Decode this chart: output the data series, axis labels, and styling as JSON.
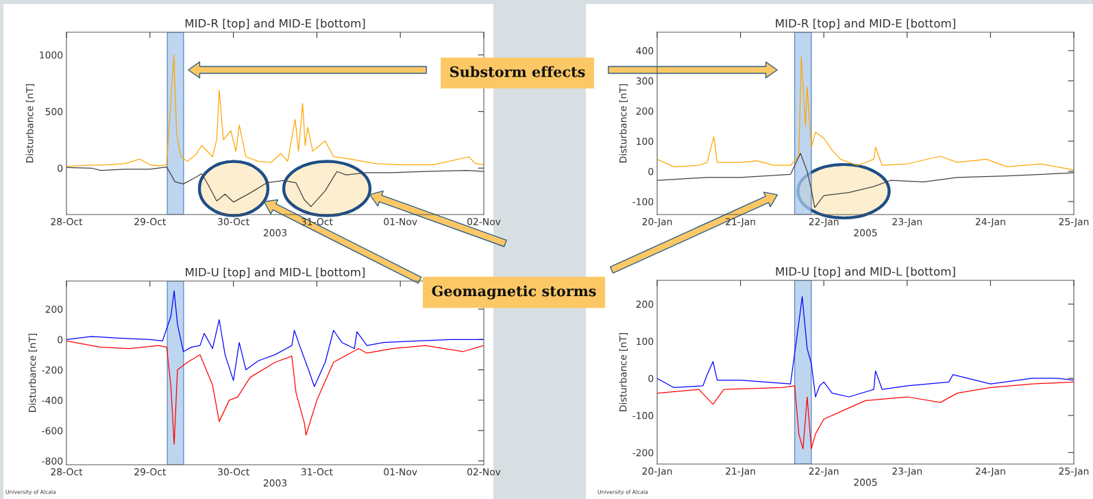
{
  "chart_data": [
    {
      "type": "line",
      "title": "MID-R [top] and MID-E [bottom]",
      "xlabel": "2003",
      "ylabel": "Disturbance [nT]",
      "xlim": [
        "2003-10-28",
        "2003-11-02"
      ],
      "xticks": [
        {
          "value": "2003-10-28",
          "label": "28-Oct"
        },
        {
          "value": "2003-10-29",
          "label": "29-Oct"
        },
        {
          "value": "2003-10-30",
          "label": "30-Oct"
        },
        {
          "value": "2003-10-31",
          "label": "31-Oct"
        },
        {
          "value": "2003-11-01",
          "label": "01-Nov"
        },
        {
          "value": "2003-11-02",
          "label": "02-Nov"
        }
      ],
      "ylim": [
        -410,
        1200
      ],
      "yticks": [
        0,
        500,
        1000
      ],
      "series": [
        {
          "color": "#ffa500",
          "x": [
            "2003-10-28T00:00",
            "2003-10-28T06:00",
            "2003-10-28T12:00",
            "2003-10-28T17:00",
            "2003-10-28T21:00",
            "2003-10-29T00:00",
            "2003-10-29T02:24",
            "2003-10-29T04:48",
            "2003-10-29T06:53",
            "2003-10-29T07:41",
            "2003-10-29T08:53",
            "2003-10-29T10:48",
            "2003-10-29T13:12",
            "2003-10-29T14:53",
            "2003-10-29T18:00",
            "2003-10-29T19:12",
            "2003-10-29T19:55",
            "2003-10-29T21:07",
            "2003-10-29T23:17",
            "2003-10-30T00:43",
            "2003-10-30T01:41",
            "2003-10-30T03:36",
            "2003-10-30T07:12",
            "2003-10-30T10:48",
            "2003-10-30T13:41",
            "2003-10-30T15:36",
            "2003-10-30T17:46",
            "2003-10-30T18:43",
            "2003-10-30T19:55",
            "2003-10-30T20:38",
            "2003-10-30T21:22",
            "2003-10-30T22:48",
            "2003-10-31T02:24",
            "2003-10-31T04:48",
            "2003-10-31T09:36",
            "2003-10-31T16:48",
            "2003-11-01T00:00",
            "2003-11-01T09:36",
            "2003-11-01T19:41",
            "2003-11-01T21:36",
            "2003-11-02T00:00"
          ],
          "values": [
            15,
            25,
            30,
            40,
            80,
            30,
            20,
            30,
            1000,
            300,
            100,
            60,
            120,
            200,
            100,
            250,
            690,
            250,
            330,
            150,
            380,
            100,
            60,
            50,
            130,
            60,
            430,
            150,
            570,
            200,
            360,
            150,
            240,
            100,
            80,
            40,
            30,
            30,
            100,
            40,
            30
          ]
        },
        {
          "color": "#404040",
          "x": [
            "2003-10-28T00:00",
            "2003-10-28T07:12",
            "2003-10-28T09:50",
            "2003-10-28T16:48",
            "2003-10-29T00:00",
            "2003-10-29T04:48",
            "2003-10-29T07:12",
            "2003-10-29T09:36",
            "2003-10-29T13:12",
            "2003-10-29T14:53",
            "2003-10-29T16:48",
            "2003-10-29T19:12",
            "2003-10-29T21:36",
            "2003-10-30T00:00",
            "2003-10-30T04:48",
            "2003-10-30T09:36",
            "2003-10-30T14:24",
            "2003-10-30T18:00",
            "2003-10-30T20:24",
            "2003-10-30T22:19",
            "2003-10-31T02:24",
            "2003-10-31T05:46",
            "2003-10-31T08:24",
            "2003-10-31T14:24",
            "2003-10-31T21:36",
            "2003-11-01T07:12",
            "2003-11-01T19:12",
            "2003-11-02T00:00"
          ],
          "values": [
            5,
            0,
            -20,
            -10,
            -10,
            10,
            -120,
            -140,
            -80,
            -50,
            -150,
            -290,
            -230,
            -300,
            -220,
            -130,
            -110,
            -130,
            -280,
            -340,
            -200,
            -30,
            -60,
            -40,
            -40,
            -30,
            -20,
            -30
          ]
        }
      ],
      "bands": [
        {
          "axis": "x",
          "from": "2003-10-29T05:00",
          "to": "2003-10-29T09:40",
          "color": "#a8c8ea"
        }
      ],
      "annotations": [
        "Substorm effects"
      ]
    },
    {
      "type": "line",
      "title": "MID-U [top] and MID-L [bottom]",
      "xlabel": "2003",
      "ylabel": "Disturbance [nT]",
      "xlim": [
        "2003-10-28",
        "2003-11-02"
      ],
      "xticks": [
        {
          "value": "2003-10-28",
          "label": "28-Oct"
        },
        {
          "value": "2003-10-29",
          "label": "29-Oct"
        },
        {
          "value": "2003-10-30",
          "label": "30-Oct"
        },
        {
          "value": "2003-10-31",
          "label": "31-Oct"
        },
        {
          "value": "2003-11-01",
          "label": "01-Nov"
        },
        {
          "value": "2003-11-02",
          "label": "02-Nov"
        }
      ],
      "ylim": [
        -825,
        385
      ],
      "yticks": [
        -800,
        -600,
        -400,
        -200,
        0,
        200
      ],
      "series": [
        {
          "color": "#0000ff",
          "x": [
            "2003-10-28T00:00",
            "2003-10-28T07:12",
            "2003-10-28T14:24",
            "2003-10-29T00:00",
            "2003-10-29T03:36",
            "2003-10-29T06:00",
            "2003-10-29T06:58",
            "2003-10-29T07:55",
            "2003-10-29T09:36",
            "2003-10-29T12:00",
            "2003-10-29T14:24",
            "2003-10-29T15:36",
            "2003-10-29T18:00",
            "2003-10-29T19:55",
            "2003-10-29T21:36",
            "2003-10-30T00:00",
            "2003-10-30T01:41",
            "2003-10-30T03:36",
            "2003-10-30T07:12",
            "2003-10-30T12:00",
            "2003-10-30T16:48",
            "2003-10-30T17:31",
            "2003-10-30T19:12",
            "2003-10-30T21:36",
            "2003-10-30T23:17",
            "2003-10-31T02:24",
            "2003-10-31T04:48",
            "2003-10-31T07:12",
            "2003-10-31T10:48",
            "2003-10-31T11:31",
            "2003-10-31T14:24",
            "2003-10-31T19:12",
            "2003-11-01T04:48",
            "2003-11-01T14:24",
            "2003-11-02T00:00"
          ],
          "values": [
            0,
            20,
            10,
            0,
            -10,
            150,
            320,
            100,
            -80,
            -50,
            -40,
            40,
            -60,
            130,
            -100,
            -270,
            -20,
            -200,
            -140,
            -100,
            -40,
            60,
            -50,
            -200,
            -310,
            -150,
            60,
            -20,
            -60,
            50,
            -40,
            -20,
            -10,
            0,
            0
          ]
        },
        {
          "color": "#ff0000",
          "x": [
            "2003-10-28T00:00",
            "2003-10-28T09:36",
            "2003-10-28T18:00",
            "2003-10-29T02:24",
            "2003-10-29T04:48",
            "2003-10-29T06:00",
            "2003-10-29T06:58",
            "2003-10-29T07:55",
            "2003-10-29T10:48",
            "2003-10-29T14:24",
            "2003-10-29T18:00",
            "2003-10-29T19:55",
            "2003-10-29T22:48",
            "2003-10-30T01:12",
            "2003-10-30T04:48",
            "2003-10-30T12:00",
            "2003-10-30T16:48",
            "2003-10-30T18:00",
            "2003-10-30T20:24",
            "2003-10-30T20:53",
            "2003-10-31T00:00",
            "2003-10-31T04:48",
            "2003-10-31T12:00",
            "2003-10-31T14:24",
            "2003-10-31T21:36",
            "2003-11-01T07:12",
            "2003-11-01T18:00",
            "2003-11-02T00:00"
          ],
          "values": [
            -10,
            -50,
            -60,
            -40,
            -50,
            -300,
            -690,
            -200,
            -150,
            -100,
            -300,
            -540,
            -400,
            -380,
            -250,
            -150,
            -110,
            -350,
            -550,
            -630,
            -400,
            -150,
            -60,
            -90,
            -60,
            -40,
            -80,
            -40
          ]
        }
      ],
      "bands": [
        {
          "axis": "x",
          "from": "2003-10-29T05:00",
          "to": "2003-10-29T09:40",
          "color": "#a8c8ea"
        }
      ],
      "annotations": [
        "Geomagnetic storms",
        "University of Alcala"
      ]
    },
    {
      "type": "line",
      "title": "MID-R [top] and MID-E [bottom]",
      "xlabel": "2005",
      "ylabel": "Disturbance [nT]",
      "xlim": [
        "2005-01-20",
        "2005-01-25"
      ],
      "xticks": [
        {
          "value": "2005-01-20",
          "label": "20-Jan"
        },
        {
          "value": "2005-01-21",
          "label": "21-Jan"
        },
        {
          "value": "2005-01-22",
          "label": "22-Jan"
        },
        {
          "value": "2005-01-23",
          "label": "23-Jan"
        },
        {
          "value": "2005-01-24",
          "label": "24-Jan"
        },
        {
          "value": "2005-01-25",
          "label": "25-Jan"
        }
      ],
      "ylim": [
        -143,
        461
      ],
      "yticks": [
        -100,
        0,
        100,
        200,
        300,
        400
      ],
      "series": [
        {
          "color": "#ffa500",
          "x": [
            "2005-01-20T00:00",
            "2005-01-20T04:48",
            "2005-01-20T12:00",
            "2005-01-20T14:24",
            "2005-01-20T16:19",
            "2005-01-20T17:17",
            "2005-01-21T00:00",
            "2005-01-21T04:48",
            "2005-01-21T09:36",
            "2005-01-21T14:24",
            "2005-01-21T16:48",
            "2005-01-21T17:31",
            "2005-01-21T18:43",
            "2005-01-21T19:12",
            "2005-01-21T20:24",
            "2005-01-21T21:36",
            "2005-01-22T00:00",
            "2005-01-22T02:24",
            "2005-01-22T04:48",
            "2005-01-22T09:36",
            "2005-01-22T14:24",
            "2005-01-22T14:53",
            "2005-01-22T16:48",
            "2005-01-23T00:00",
            "2005-01-23T09:36",
            "2005-01-23T14:24",
            "2005-01-23T22:48",
            "2005-01-24T04:48",
            "2005-01-24T14:24",
            "2005-01-25T00:00"
          ],
          "values": [
            40,
            15,
            20,
            30,
            115,
            30,
            30,
            35,
            20,
            20,
            50,
            380,
            150,
            280,
            80,
            130,
            110,
            70,
            40,
            20,
            40,
            80,
            20,
            25,
            50,
            30,
            40,
            15,
            25,
            5
          ]
        },
        {
          "color": "#404040",
          "x": [
            "2005-01-20T00:00",
            "2005-01-20T14:24",
            "2005-01-21T00:00",
            "2005-01-21T14:24",
            "2005-01-21T17:17",
            "2005-01-21T19:12",
            "2005-01-21T20:24",
            "2005-01-21T21:22",
            "2005-01-22T00:00",
            "2005-01-22T07:12",
            "2005-01-22T14:24",
            "2005-01-22T19:12",
            "2005-01-23T04:48",
            "2005-01-23T14:24",
            "2005-01-24T04:48",
            "2005-01-25T00:00"
          ],
          "values": [
            -30,
            -20,
            -20,
            -10,
            60,
            0,
            -60,
            -120,
            -80,
            -70,
            -50,
            -30,
            -35,
            -20,
            -15,
            -5
          ]
        }
      ],
      "bands": [
        {
          "axis": "x",
          "from": "2005-01-21T15:36",
          "to": "2005-01-21T20:24",
          "color": "#a8c8ea"
        }
      ]
    },
    {
      "type": "line",
      "title": "MID-U [top] and MID-L [bottom]",
      "xlabel": "2005",
      "ylabel": "Disturbance [nT]",
      "xlim": [
        "2005-01-20",
        "2005-01-25"
      ],
      "xticks": [
        {
          "value": "2005-01-20",
          "label": "20-Jan"
        },
        {
          "value": "2005-01-21",
          "label": "21-Jan"
        },
        {
          "value": "2005-01-22",
          "label": "22-Jan"
        },
        {
          "value": "2005-01-23",
          "label": "23-Jan"
        },
        {
          "value": "2005-01-24",
          "label": "24-Jan"
        },
        {
          "value": "2005-01-25",
          "label": "25-Jan"
        }
      ],
      "ylim": [
        -231,
        264
      ],
      "yticks": [
        -200,
        -100,
        0,
        100,
        200
      ],
      "series": [
        {
          "color": "#0000ff",
          "x": [
            "2005-01-20T00:00",
            "2005-01-20T04:48",
            "2005-01-20T13:12",
            "2005-01-20T14:24",
            "2005-01-20T16:05",
            "2005-01-20T17:17",
            "2005-01-21T00:00",
            "2005-01-21T14:24",
            "2005-01-21T16:48",
            "2005-01-21T17:46",
            "2005-01-21T19:12",
            "2005-01-21T20:24",
            "2005-01-21T21:36",
            "2005-01-21T22:48",
            "2005-01-22T00:00",
            "2005-01-22T02:24",
            "2005-01-22T07:12",
            "2005-01-22T14:24",
            "2005-01-22T14:53",
            "2005-01-22T16:48",
            "2005-01-23T00:00",
            "2005-01-23T12:00",
            "2005-01-23T13:12",
            "2005-01-24T00:00",
            "2005-01-24T12:00",
            "2005-01-24T19:12",
            "2005-01-25T00:00"
          ],
          "values": [
            0,
            -25,
            -20,
            10,
            45,
            -5,
            -5,
            -15,
            150,
            220,
            80,
            40,
            -50,
            -20,
            -10,
            -40,
            -50,
            -30,
            20,
            -30,
            -20,
            -10,
            10,
            -15,
            0,
            0,
            -5
          ]
        },
        {
          "color": "#ff0000",
          "x": [
            "2005-01-20T00:00",
            "2005-01-20T12:00",
            "2005-01-20T16:05",
            "2005-01-20T19:12",
            "2005-01-21T12:00",
            "2005-01-21T15:36",
            "2005-01-21T16:48",
            "2005-01-21T18:00",
            "2005-01-21T19:12",
            "2005-01-21T20:24",
            "2005-01-21T21:36",
            "2005-01-22T00:00",
            "2005-01-22T04:48",
            "2005-01-22T12:00",
            "2005-01-23T00:00",
            "2005-01-23T09:36",
            "2005-01-23T14:24",
            "2005-01-24T00:00",
            "2005-01-24T12:00",
            "2005-01-25T00:00"
          ],
          "values": [
            -40,
            -30,
            -70,
            -30,
            -25,
            -20,
            -150,
            -190,
            -50,
            -190,
            -150,
            -110,
            -90,
            -60,
            -50,
            -65,
            -40,
            -25,
            -15,
            -10
          ]
        }
      ],
      "bands": [
        {
          "axis": "x",
          "from": "2005-01-21T15:36",
          "to": "2005-01-21T20:24",
          "color": "#a8c8ea"
        }
      ],
      "annotations": [
        "University of Alcala"
      ]
    }
  ]
}
